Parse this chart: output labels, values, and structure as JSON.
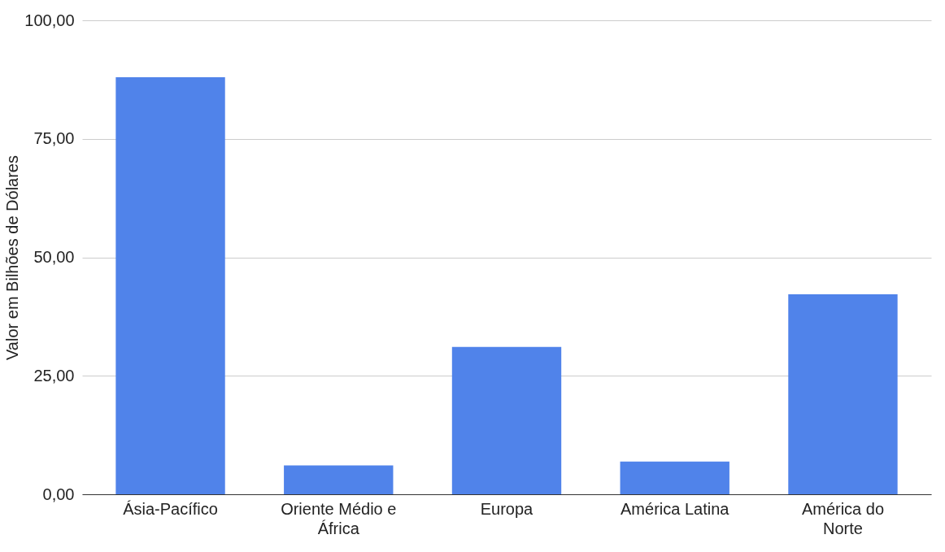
{
  "chart_data": {
    "type": "bar",
    "ylabel": "Valor em Bilhões de Dólares",
    "categories": [
      "Ásia-Pacífico",
      "Oriente Médio e África",
      "Europa",
      "América Latina",
      "América do Norte"
    ],
    "values": [
      88.0,
      6.1,
      31.1,
      6.9,
      42.2
    ],
    "color": "#5083ea",
    "ylim": [
      0,
      100
    ],
    "yticks": [
      {
        "value": 0,
        "label": "0,00"
      },
      {
        "value": 25,
        "label": "25,00"
      },
      {
        "value": 50,
        "label": "50,00"
      },
      {
        "value": 75,
        "label": "75,00"
      },
      {
        "value": 100,
        "label": "100,00"
      }
    ],
    "grid": "y"
  }
}
